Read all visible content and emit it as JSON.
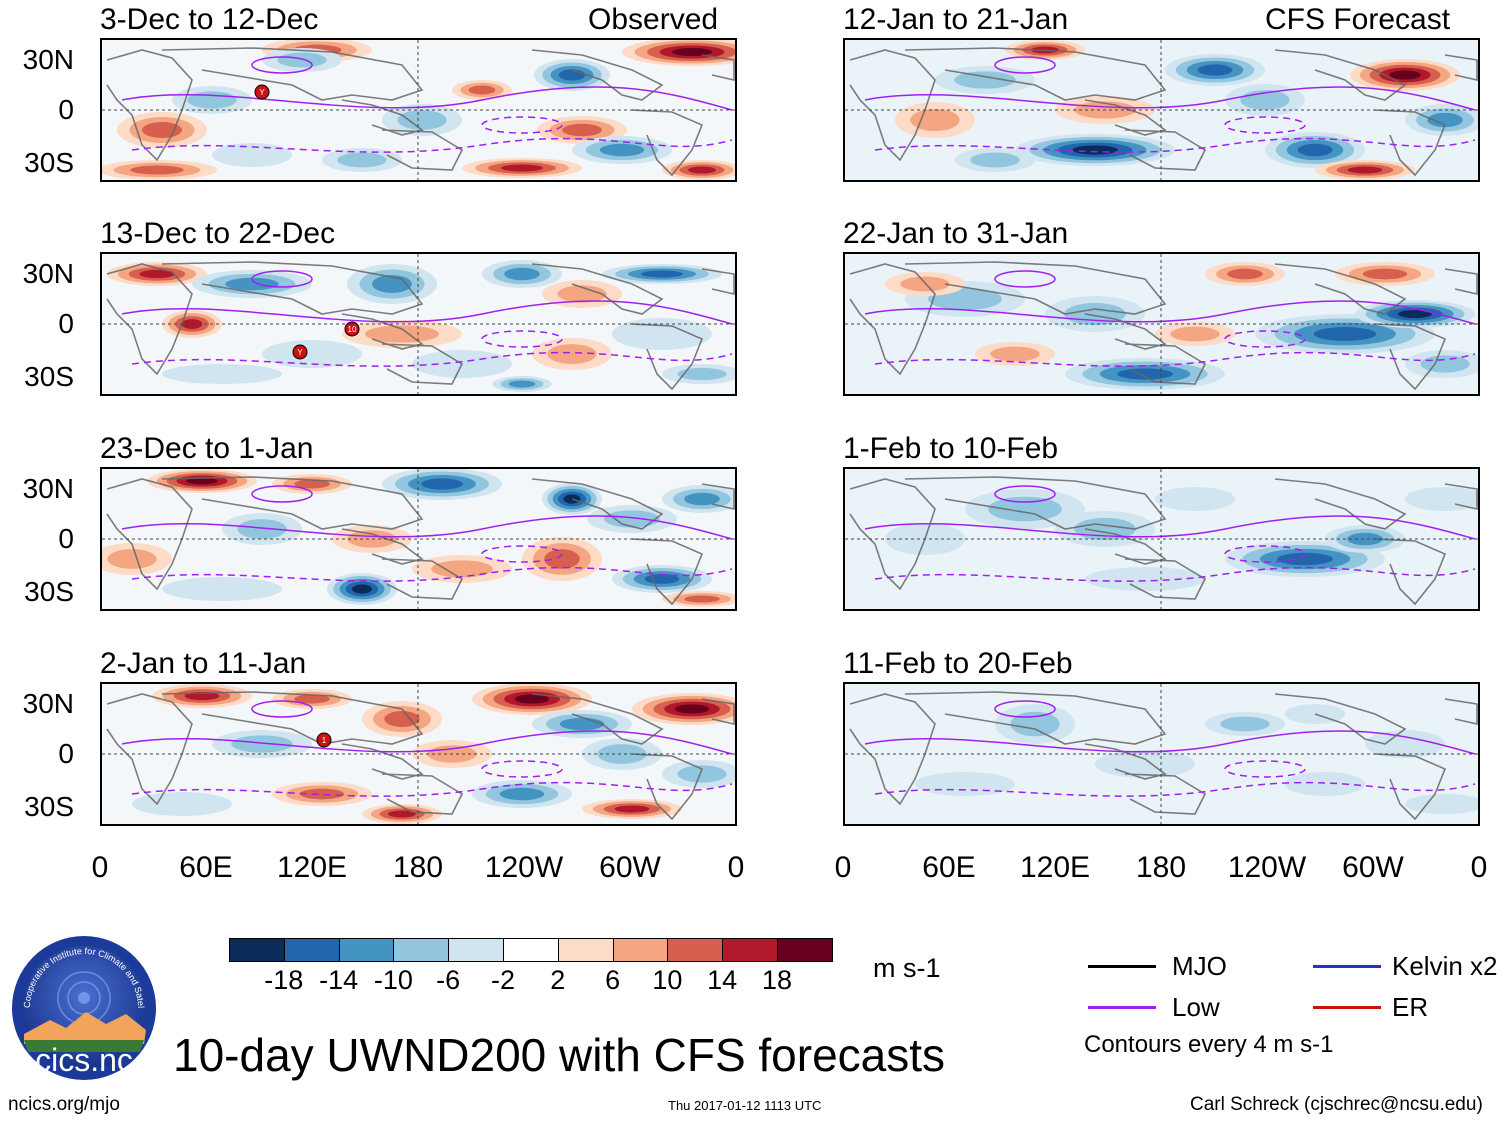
{
  "header": {
    "observed_label": "Observed",
    "forecast_label": "CFS Forecast"
  },
  "panels_left": [
    {
      "title": "3-Dec to 12-Dec"
    },
    {
      "title": "13-Dec to 22-Dec"
    },
    {
      "title": "23-Dec to 1-Jan"
    },
    {
      "title": "2-Jan to 11-Jan"
    }
  ],
  "panels_right": [
    {
      "title": "12-Jan to 21-Jan"
    },
    {
      "title": "22-Jan to 31-Jan"
    },
    {
      "title": "1-Feb to 10-Feb"
    },
    {
      "title": "11-Feb to 20-Feb"
    }
  ],
  "lat_labels": [
    "30N",
    "0",
    "30S"
  ],
  "lon_labels": [
    "0",
    "60E",
    "120E",
    "180",
    "120W",
    "60W",
    "0"
  ],
  "storm_markers": [
    {
      "panel": "left-0",
      "label": "Y"
    },
    {
      "panel": "left-1",
      "label": "10"
    },
    {
      "panel": "left-1",
      "label": "Y"
    },
    {
      "panel": "left-3",
      "label": "1"
    }
  ],
  "colorbar": {
    "colors": [
      "#0b2c5a",
      "#2166ac",
      "#4393c3",
      "#92c5de",
      "#d1e5f0",
      "#ffffff",
      "#fddbc7",
      "#f4a582",
      "#d6604d",
      "#b2182b",
      "#67001f"
    ],
    "tick_labels": [
      "-18",
      "-14",
      "-10",
      "-6",
      "-2",
      "2",
      "6",
      "10",
      "14",
      "18"
    ],
    "units": "m s-1"
  },
  "legend": {
    "items": [
      {
        "label": "MJO",
        "color": "#000000"
      },
      {
        "label": "Kelvin x2",
        "color": "#2233cc"
      },
      {
        "label": "Low",
        "color": "#a020f0"
      },
      {
        "label": "ER",
        "color": "#cc1111"
      }
    ],
    "contour_note": "Contours every 4 m s-1"
  },
  "logo": {
    "text": "cics.nc",
    "ring_text": "Cooperative Institute for Climate and Satellites"
  },
  "footer": {
    "main_title": "10-day UWND200 with CFS forecasts",
    "url": "ncics.org/mjo",
    "timestamp": "Thu 2017-01-12 1113 UTC",
    "author": "Carl Schreck (cjschrec@ncsu.edu)"
  },
  "colors": {
    "mjo": "#000000",
    "kelvin": "#2233cc",
    "low": "#a020f0",
    "er": "#cc1111",
    "land": "#666666"
  }
}
